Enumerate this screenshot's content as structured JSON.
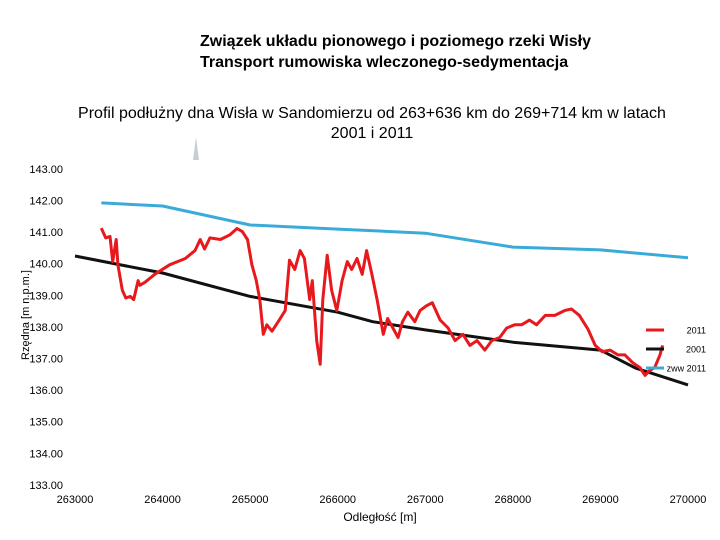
{
  "header": {
    "line1": "Związek układu pionowego i poziomego rzeki Wisły",
    "line2": "Transport rumowiska wleczonego-sedymentacja"
  },
  "chart_data": {
    "type": "line",
    "title": "Profil podłużny dna Wisła w Sandomierzu od 263+636 km do 269+714 km w latach 2001 i 2011",
    "x_label": "Odległość [m]",
    "y_label": "Rzędna [m n.p.m.]",
    "xlim": [
      263000,
      270000
    ],
    "xticks": [
      263000,
      264000,
      265000,
      266000,
      267000,
      268000,
      269000,
      270000
    ],
    "ylim": [
      133,
      143
    ],
    "yticks": [
      {
        "value": 133,
        "label": "133.00"
      },
      {
        "value": 134,
        "label": "134.00"
      },
      {
        "value": 135,
        "label": "135.00"
      },
      {
        "value": 136,
        "label": "136.00"
      },
      {
        "value": 137,
        "label": "137.00"
      },
      {
        "value": 138,
        "label": "138.00"
      },
      {
        "value": 139,
        "label": "139.00"
      },
      {
        "value": 140,
        "label": "140.00"
      },
      {
        "value": 141,
        "label": "141.00"
      },
      {
        "value": 142,
        "label": "142.00"
      },
      {
        "value": 143,
        "label": "143.00"
      }
    ],
    "legend": "right",
    "grid": false,
    "series": [
      {
        "name": "2011",
        "color": "#e8191c",
        "x": [
          263300,
          263350,
          263400,
          263430,
          263470,
          263490,
          263540,
          263580,
          263630,
          263670,
          263720,
          263740,
          263800,
          263910,
          264080,
          264260,
          264370,
          264430,
          264480,
          264540,
          264660,
          264770,
          264850,
          264910,
          264970,
          265020,
          265070,
          265110,
          265150,
          265190,
          265250,
          265320,
          265400,
          265450,
          265510,
          265570,
          265620,
          265680,
          265710,
          265760,
          265800,
          265830,
          265880,
          265930,
          265990,
          266050,
          266110,
          266160,
          266220,
          266280,
          266330,
          266390,
          266450,
          266520,
          266570,
          266630,
          266690,
          266740,
          266800,
          266880,
          266940,
          267010,
          267080,
          267170,
          267260,
          267340,
          267430,
          267510,
          267590,
          267680,
          267760,
          267850,
          267930,
          268020,
          268100,
          268190,
          268270,
          268370,
          268480,
          268590,
          268670,
          268760,
          268860,
          268940,
          269020,
          269110,
          269200,
          269280,
          269370,
          269450,
          269510,
          269560,
          269620,
          269680,
          269710
        ],
        "values": [
          141.16,
          140.85,
          140.9,
          140.1,
          140.8,
          140.0,
          139.2,
          138.95,
          139.0,
          138.9,
          139.5,
          139.35,
          139.45,
          139.7,
          140.0,
          140.2,
          140.45,
          140.8,
          140.5,
          140.85,
          140.8,
          140.95,
          141.15,
          141.05,
          140.8,
          140.0,
          139.5,
          138.9,
          137.8,
          138.1,
          137.9,
          138.2,
          138.55,
          140.15,
          139.85,
          140.45,
          140.2,
          138.9,
          139.5,
          137.6,
          136.85,
          138.9,
          140.3,
          139.2,
          138.55,
          139.5,
          140.1,
          139.85,
          140.2,
          139.7,
          140.45,
          139.7,
          138.9,
          137.8,
          138.3,
          138.0,
          137.7,
          138.2,
          138.5,
          138.2,
          138.55,
          138.7,
          138.8,
          138.25,
          138.0,
          137.6,
          137.8,
          137.45,
          137.6,
          137.3,
          137.6,
          137.7,
          138.0,
          138.1,
          138.1,
          138.25,
          138.1,
          138.4,
          138.4,
          138.55,
          138.6,
          138.4,
          137.95,
          137.45,
          137.25,
          137.3,
          137.15,
          137.15,
          136.9,
          136.75,
          136.5,
          136.65,
          136.75,
          137.15,
          137.45
        ]
      },
      {
        "name": "2001",
        "color": "#111111",
        "x": [
          263000,
          264000,
          265000,
          266000,
          266400,
          267000,
          268000,
          269000,
          269400,
          270000
        ],
        "values": [
          140.28,
          139.74,
          139.0,
          138.5,
          138.2,
          137.94,
          137.55,
          137.3,
          136.73,
          136.2
        ]
      },
      {
        "name": "zww 2011",
        "color": "#3aabd8",
        "x": [
          263300,
          264000,
          265000,
          266000,
          267000,
          268000,
          269000,
          270000
        ],
        "values": [
          141.96,
          141.86,
          141.26,
          141.13,
          141.0,
          140.56,
          140.47,
          140.22
        ]
      }
    ]
  }
}
